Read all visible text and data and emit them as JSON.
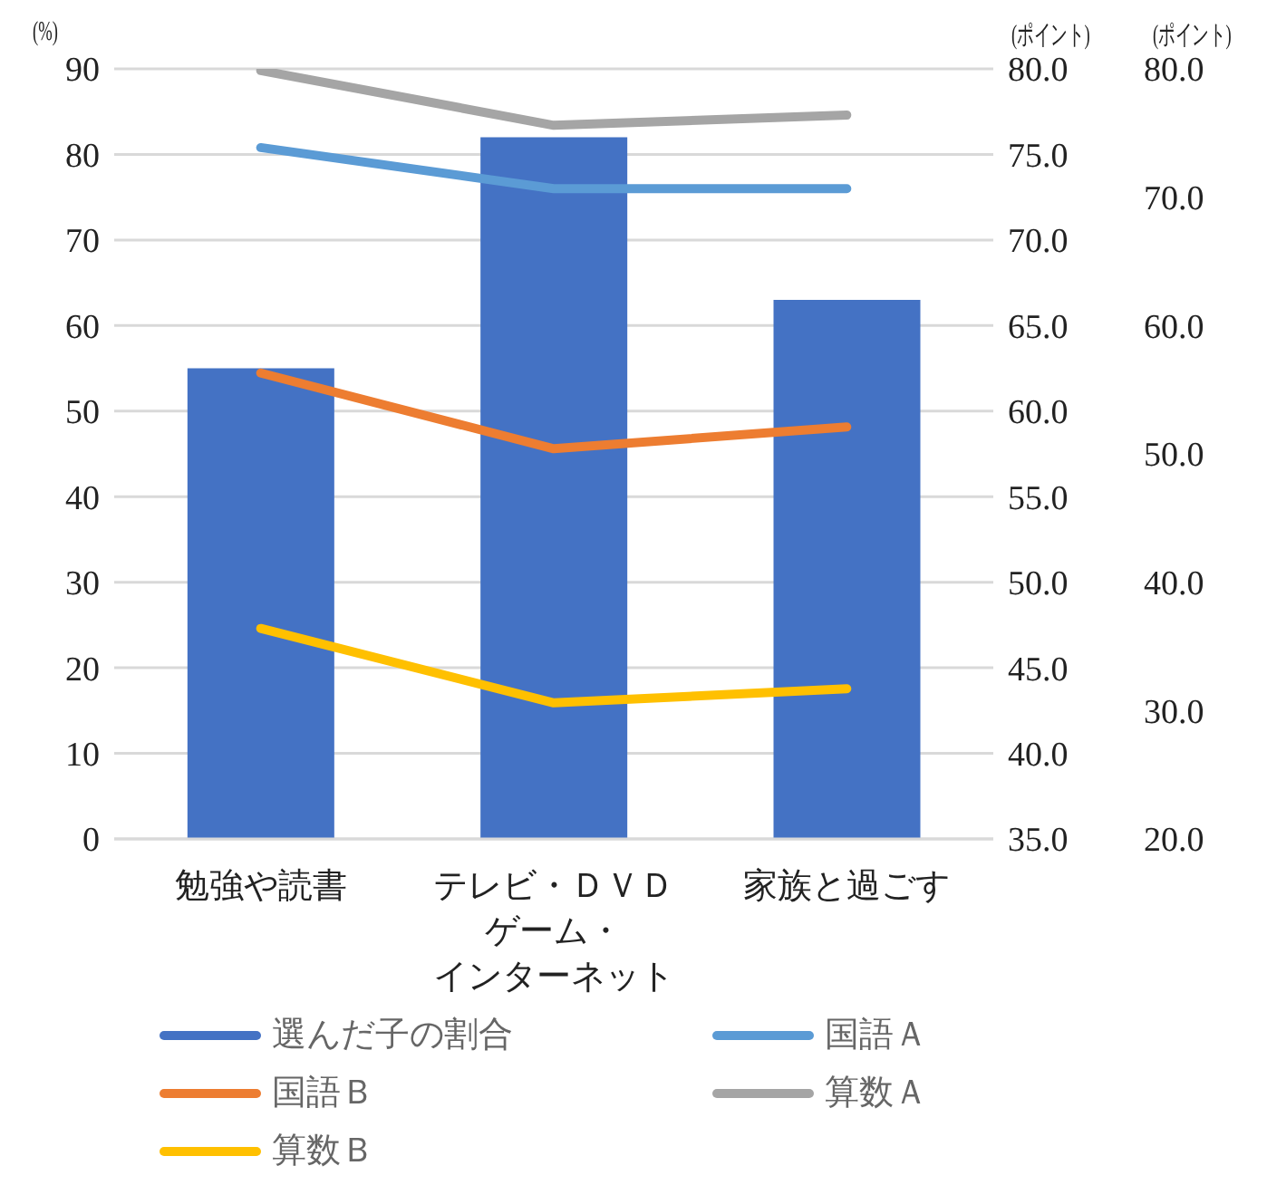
{
  "chart_data": {
    "type": "bar",
    "ylabel": "(%)",
    "y2label": "(ポイント)",
    "y3label": "(ポイント)",
    "categories": [
      "勉強や読書",
      "テレビ・ＤＶＤゲーム・インターネット",
      "家族と過ごす"
    ],
    "series": [
      {
        "name": "選んだ子の割合",
        "color": "#4472c4",
        "values": [
          55,
          82,
          63
        ]
      },
      {
        "name": "国語Ａ",
        "type": "line",
        "axis": "y2",
        "color": "#5b9bd5",
        "values": [
          75.4,
          73.0,
          73.0
        ]
      },
      {
        "name": "国語Ｂ",
        "type": "line",
        "axis": "y3",
        "color": "#ed7d31",
        "values": [
          56.3,
          50.4,
          52.1
        ]
      },
      {
        "name": "算数Ａ",
        "type": "line",
        "axis": "y2",
        "color": "#a5a5a5",
        "values": [
          79.9,
          76.7,
          77.3
        ]
      },
      {
        "name": "算数Ｂ",
        "type": "line",
        "axis": "y3",
        "color": "#ffc000",
        "values": [
          36.4,
          30.6,
          31.7
        ]
      }
    ],
    "ylim": [
      0,
      90
    ],
    "yticks": [
      0,
      10,
      20,
      30,
      40,
      50,
      60,
      70,
      80,
      90
    ],
    "y2lim": [
      35,
      80
    ],
    "y2ticks": [
      {
        "value": 35,
        "label": "35.0"
      },
      {
        "value": 40,
        "label": "40.0"
      },
      {
        "value": 45,
        "label": "45.0"
      },
      {
        "value": 50,
        "label": "50.0"
      },
      {
        "value": 55,
        "label": "55.0"
      },
      {
        "value": 60,
        "label": "60.0"
      },
      {
        "value": 65,
        "label": "65.0"
      },
      {
        "value": 70,
        "label": "70.0"
      },
      {
        "value": 75,
        "label": "75.0"
      },
      {
        "value": 80,
        "label": "80.0"
      }
    ],
    "y3lim": [
      20,
      80
    ],
    "y3ticks": [
      {
        "value": 20,
        "label": "20.0"
      },
      {
        "value": 30,
        "label": "30.0"
      },
      {
        "value": 40,
        "label": "40.0"
      },
      {
        "value": 50,
        "label": "50.0"
      },
      {
        "value": 60,
        "label": "60.0"
      },
      {
        "value": 70,
        "label": "70.0"
      },
      {
        "value": 80,
        "label": "80.0"
      }
    ],
    "grid": "y",
    "legend": "bottom",
    "marker": "none",
    "line_style": "solid"
  }
}
